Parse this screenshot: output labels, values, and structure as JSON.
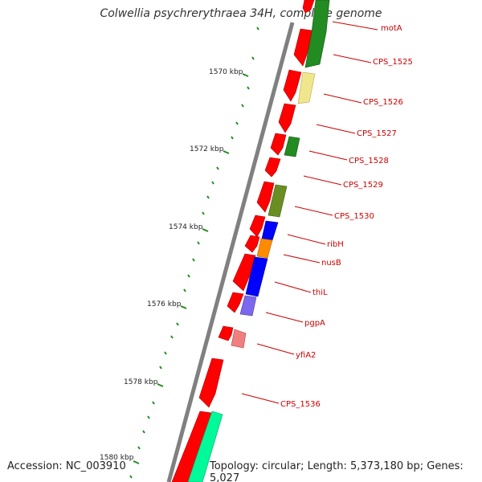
{
  "title": "Colwellia psychrerythraea 34H, complete genome",
  "accession_text": "Accession: NC_003910",
  "topology_text": "Topology: circular; Length: 5,373,180 bp; Genes: 5,027",
  "kbp_labels": [
    "1570 kbp",
    "1572 kbp",
    "1574 kbp",
    "1576 kbp",
    "1578 kbp",
    "1580 kbp"
  ],
  "gene_labels": [
    "motA",
    "CPS_1525",
    "CPS_1526",
    "CPS_1527",
    "CPS_1528",
    "CPS_1529",
    "CPS_1530",
    "ribH",
    "nusB",
    "thiL",
    "pgpA",
    "yfiA2",
    "CPS_1536"
  ],
  "colors": {
    "red": "#ff0000",
    "dark_green": "#228b22",
    "khaki": "#f0e68c",
    "olive": "#6b8e23",
    "blue": "#0000ff",
    "orange": "#ff8c00",
    "slate_blue": "#7b68ee",
    "pink": "#f08080",
    "spring_green": "#00fa9a",
    "backbone": "#808080",
    "tick": "#228b22"
  }
}
